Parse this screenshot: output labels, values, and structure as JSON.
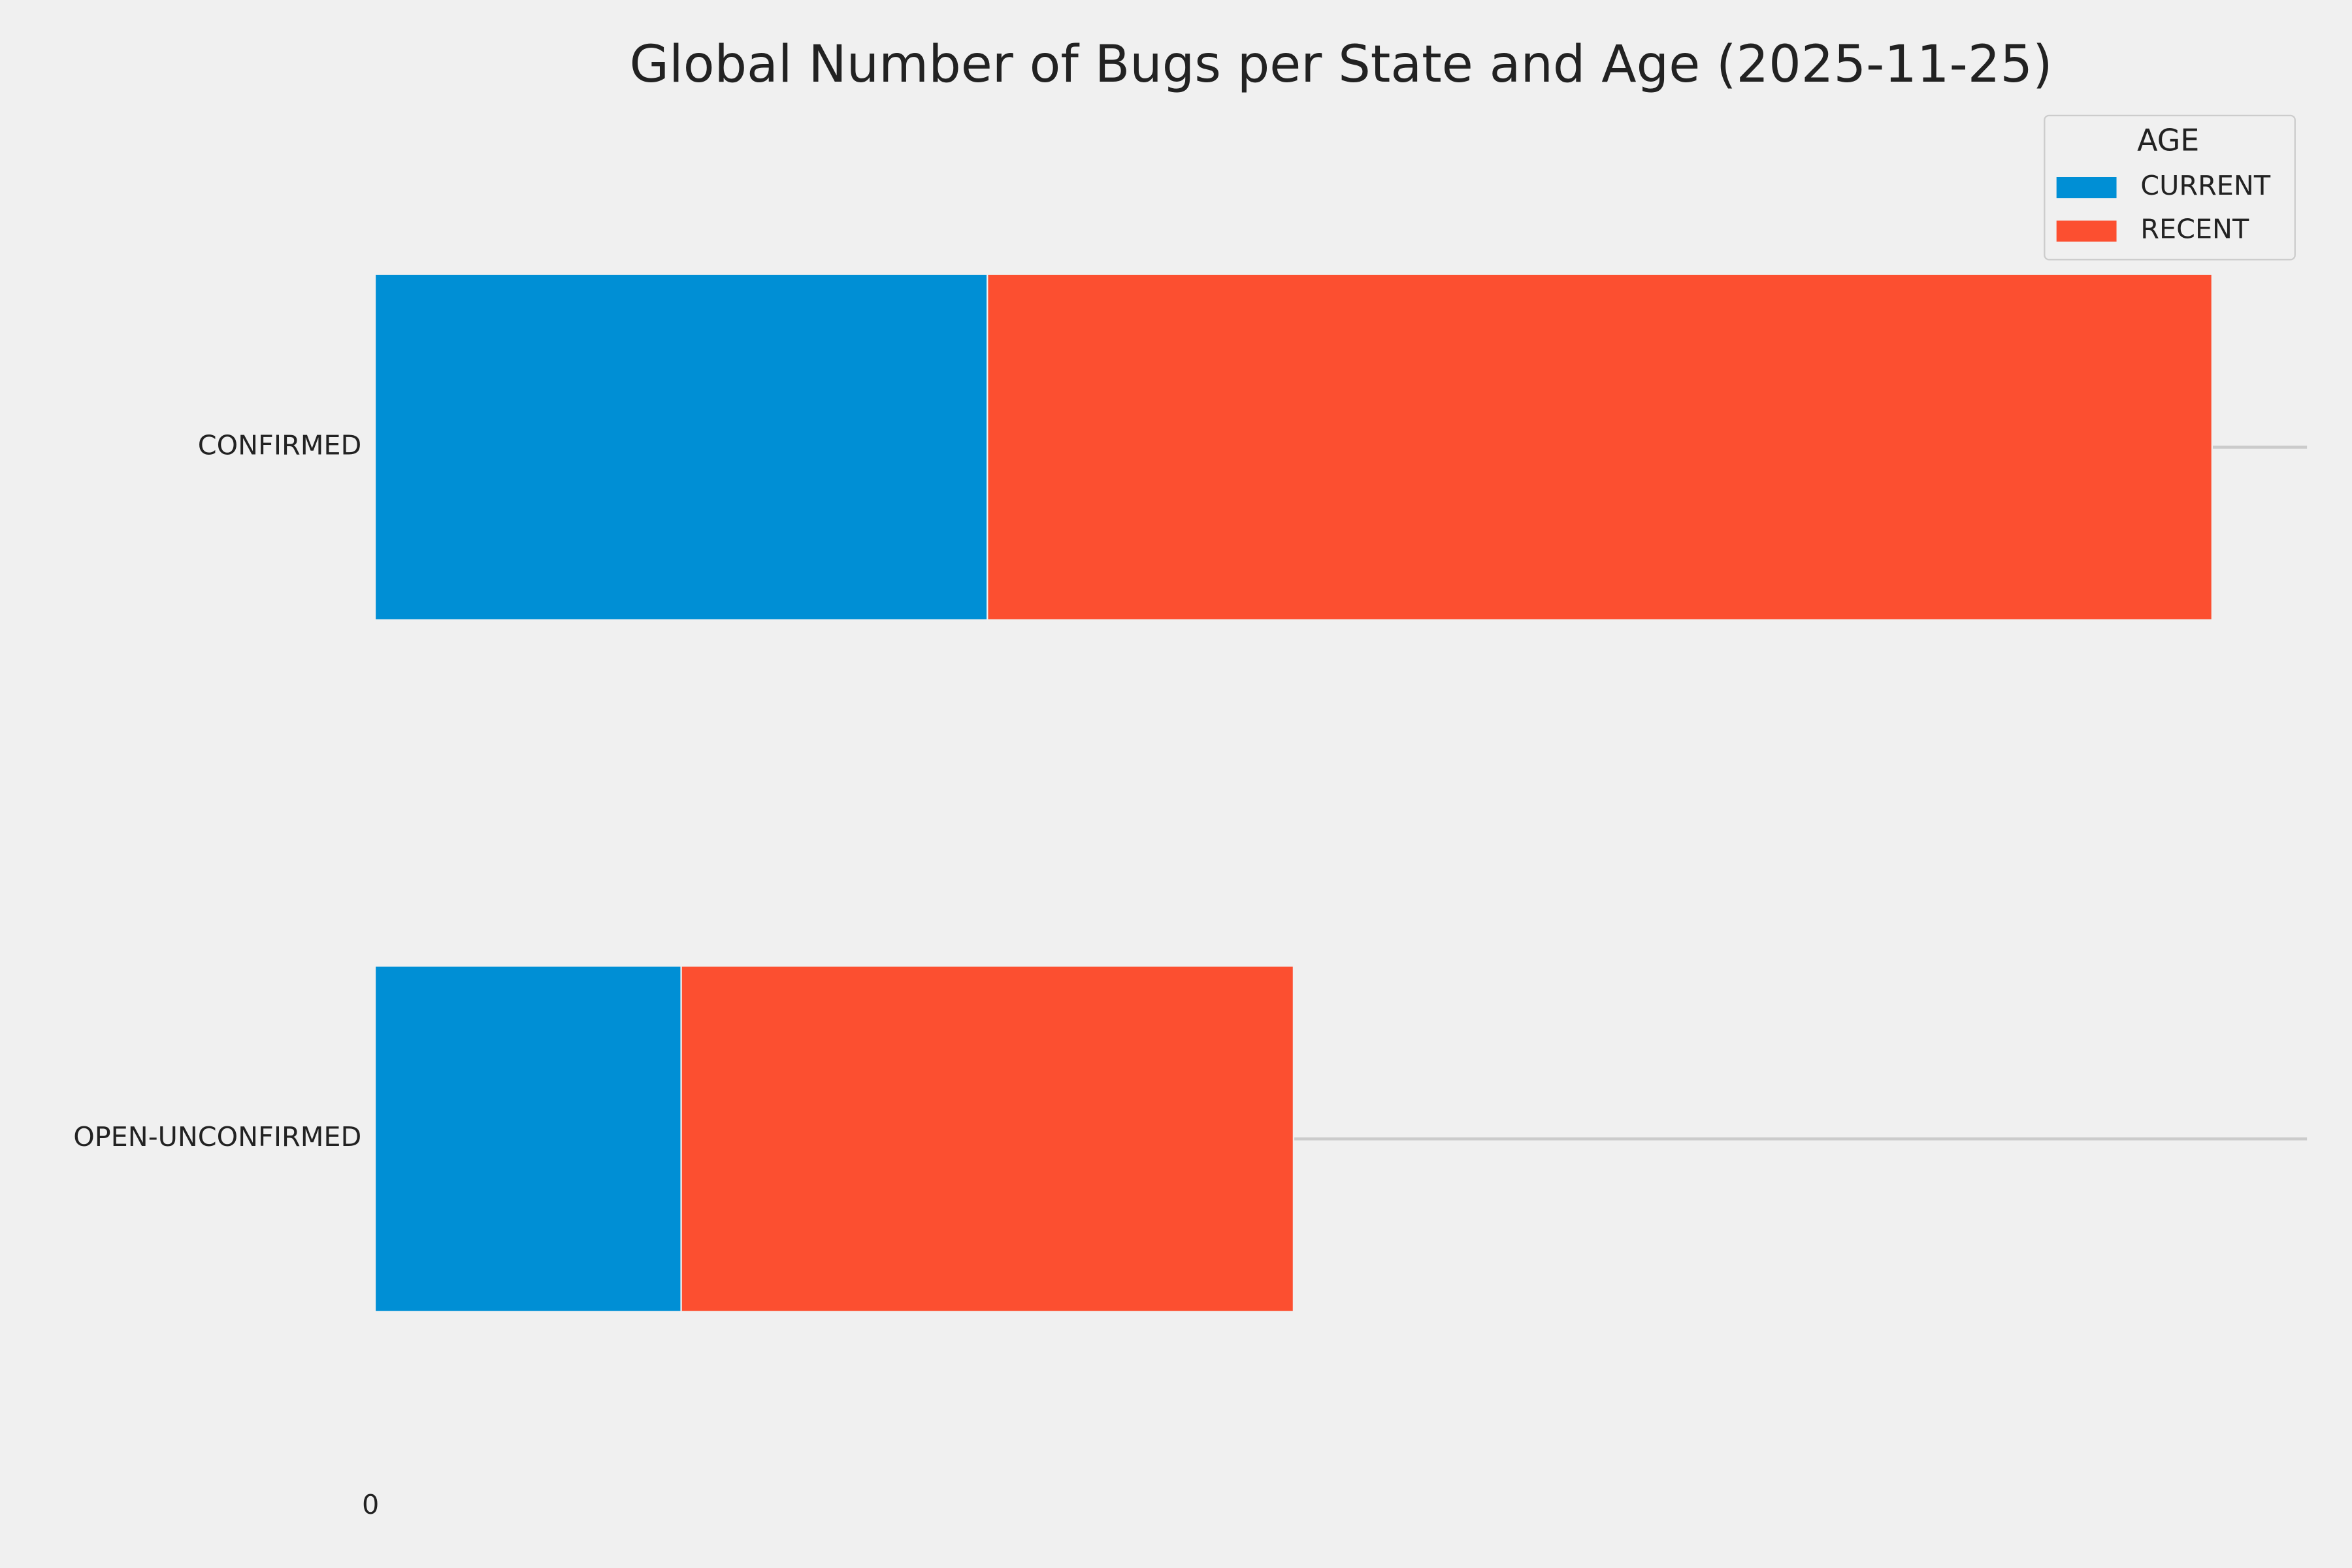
{
  "chart_data": {
    "type": "stacked-barh",
    "title": "Global Number of Bugs per State and Age (2025-11-25)",
    "categories": [
      "CONFIRMED",
      "OPEN-UNCONFIRMED"
    ],
    "series": [
      {
        "name": "CURRENT",
        "color": "#008fd5",
        "values": [
          2,
          1
        ]
      },
      {
        "name": "RECENT",
        "color": "#fc4f30",
        "values": [
          4,
          2
        ]
      }
    ],
    "legend_title": "AGE",
    "legend": "upper right",
    "xlim": [
      0,
      6.31
    ],
    "xticks": [
      0
    ],
    "grid": "y"
  }
}
